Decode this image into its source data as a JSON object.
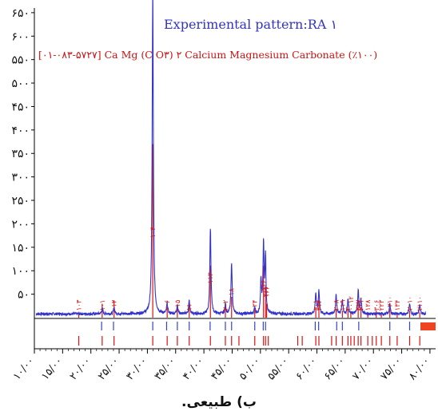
{
  "chart_data": {
    "type": "line",
    "title": "Experimental pattern:RA ۱",
    "reference_label": "[۰۱-۰۸۳-۵۷۲۷] Ca Mg (C O۳) ۲ Calcium Magnesium Carbonate (٪۱۰۰)",
    "xlabel": "",
    "ylabel": "",
    "xlim": [
      10,
      81
    ],
    "ylim": [
      0,
      660
    ],
    "x_ticks": [
      10,
      15,
      20,
      25,
      30,
      35,
      40,
      45,
      50,
      55,
      60,
      65,
      70,
      75,
      80
    ],
    "x_tick_labels": [
      "۱۰/۰۰",
      "۱۵/۰۰",
      "۲۰/۰۰",
      "۲۵/۰۰",
      "۳۰/۰۰",
      "۳۵/۰۰",
      "۴۰/۰۰",
      "۴۵/۰۰",
      "۵۰/۰۰",
      "۵۵/۰۰",
      "۶۰/۰۰",
      "۶۵/۰۰",
      "۷۰/۰۰",
      "۷۵/۰۰",
      "۸۰/۰۰"
    ],
    "y_ticks": [
      50,
      100,
      150,
      200,
      250,
      300,
      350,
      400,
      450,
      500,
      550,
      600,
      650
    ],
    "y_tick_labels": [
      "۵۰",
      "۱۰۰",
      "۱۵۰",
      "۲۰۰",
      "۲۵۰",
      "۳۰۰",
      "۳۵۰",
      "۴۰۰",
      "۴۵۰",
      "۵۰۰",
      "۵۵۰",
      "۶۰۰",
      "۶۵۰"
    ],
    "series": [
      {
        "name": "Experimental pattern:RA ۱",
        "color": "#3333cc",
        "baseline": 8,
        "peaks": [
          {
            "x": 30.95,
            "y": 700,
            "w": 0.12
          },
          {
            "x": 41.15,
            "y": 185,
            "w": 0.12
          },
          {
            "x": 44.9,
            "y": 110,
            "w": 0.12
          },
          {
            "x": 50.55,
            "y": 150,
            "w": 0.12
          },
          {
            "x": 50.9,
            "y": 120,
            "w": 0.1
          },
          {
            "x": 50.1,
            "y": 70,
            "w": 0.1
          },
          {
            "x": 37.4,
            "y": 28,
            "w": 0.12
          },
          {
            "x": 35.3,
            "y": 20,
            "w": 0.12
          },
          {
            "x": 33.5,
            "y": 22,
            "w": 0.12
          },
          {
            "x": 22.0,
            "y": 12,
            "w": 0.12
          },
          {
            "x": 24.1,
            "y": 14,
            "w": 0.12
          },
          {
            "x": 43.8,
            "y": 20,
            "w": 0.12
          },
          {
            "x": 49.0,
            "y": 14,
            "w": 0.12
          },
          {
            "x": 59.8,
            "y": 45,
            "w": 0.12
          },
          {
            "x": 60.35,
            "y": 50,
            "w": 0.12
          },
          {
            "x": 63.4,
            "y": 40,
            "w": 0.12
          },
          {
            "x": 64.5,
            "y": 30,
            "w": 0.12
          },
          {
            "x": 65.5,
            "y": 32,
            "w": 0.12
          },
          {
            "x": 67.3,
            "y": 52,
            "w": 0.12
          },
          {
            "x": 67.8,
            "y": 30,
            "w": 0.12
          },
          {
            "x": 72.9,
            "y": 20,
            "w": 0.12
          },
          {
            "x": 76.4,
            "y": 22,
            "w": 0.12
          },
          {
            "x": 78.2,
            "y": 18,
            "w": 0.12
          }
        ]
      },
      {
        "name": "[۰۱-۰۸۳-۵۷۲۷] Ca Mg (C O۳) ۲ Calcium Magnesium Carbonate (٪۱۰۰)",
        "color": "#dd1111",
        "type": "stick",
        "x": [
          17.85,
          22.0,
          24.1,
          30.95,
          33.5,
          35.3,
          37.4,
          41.15,
          43.8,
          44.9,
          49.0,
          50.55,
          50.9,
          51.1,
          59.8,
          60.35,
          63.4,
          64.5,
          65.5,
          66.0,
          67.3,
          67.8,
          69.0,
          70.5,
          71.4,
          72.9,
          74.2,
          76.4,
          78.2
        ],
        "y": [
          2,
          8,
          10,
          100,
          6,
          6,
          8,
          30,
          6,
          12,
          6,
          30,
          18,
          8,
          6,
          10,
          5,
          4,
          5,
          3,
          10,
          6,
          3,
          4,
          3,
          5,
          3,
          4,
          3
        ],
        "labels": [
          "۱۰۳",
          "۱۰۱",
          "۰۱۲",
          "۱۰۴",
          "۰۰۶",
          "۰۱۵",
          "۱۱۰",
          "۱۱۳",
          "۲۰۲",
          "۰۱۸",
          "۰۲۴",
          "۱۱۶",
          "۲۱۱",
          "۱۲۲",
          "۱۰۱۰",
          "۲۱۴",
          "۲۰۸",
          "۱۱۹",
          "۳۰۰",
          "۰۰۱۲",
          "۲۱۷",
          "۲۰۱۰",
          "۱۲۸",
          "۳۰۶",
          "۲۲۳",
          "۰۲۱۰",
          "۱۳۴",
          "۲۰۱۰",
          "۲۱۱۰"
        ]
      }
    ],
    "reference_ticks": [
      17.85,
      22.0,
      24.1,
      30.95,
      33.5,
      35.3,
      37.4,
      41.15,
      43.8,
      44.9,
      46.2,
      49.0,
      50.55,
      50.9,
      51.4,
      56.6,
      57.4,
      59.8,
      60.35,
      62.6,
      63.4,
      64.5,
      65.5,
      66.0,
      66.6,
      67.3,
      67.8,
      69.0,
      69.8,
      70.5,
      71.4,
      72.9,
      74.2,
      76.4,
      78.2
    ],
    "phase_ticks_blue": [
      21.9,
      24.0,
      30.95,
      33.4,
      35.3,
      37.4,
      41.1,
      43.8,
      44.9,
      49.0,
      50.5,
      50.9,
      59.7,
      60.3,
      63.5,
      64.5,
      67.4,
      72.9,
      76.4
    ]
  },
  "caption": "ب) طبیعی."
}
